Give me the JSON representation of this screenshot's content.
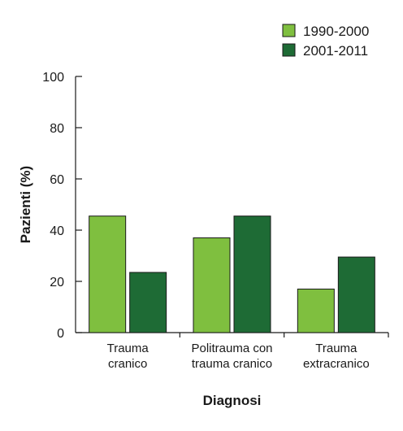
{
  "chart_data": {
    "type": "bar",
    "title": "",
    "xlabel": "Diagnosi",
    "ylabel": "Pazienti (%)",
    "ylim": [
      0,
      100
    ],
    "yticks": [
      0,
      20,
      40,
      60,
      80,
      100
    ],
    "grid": false,
    "legend_position": "top-right",
    "categories": [
      [
        "Trauma",
        "cranico"
      ],
      [
        "Politrauma con",
        "trauma cranico"
      ],
      [
        "Trauma",
        "extracranico"
      ]
    ],
    "series": [
      {
        "name": "1990-2000",
        "color": "#7fbf3f",
        "values": [
          45.5,
          37,
          17
        ]
      },
      {
        "name": "2001-2011",
        "color": "#1e6b35",
        "values": [
          23.5,
          45.5,
          29.5
        ]
      }
    ]
  }
}
